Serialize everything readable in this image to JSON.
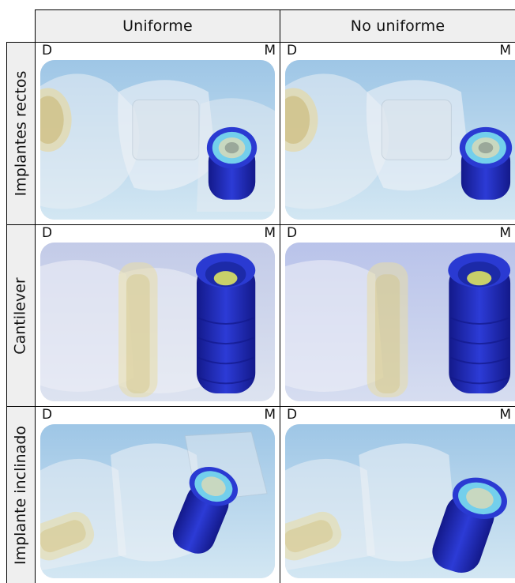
{
  "columns": [
    "Uniforme",
    "No uniforme"
  ],
  "rows": [
    "Implantes rectos",
    "Cantilever",
    "Implante inclinado"
  ],
  "corner_labels": {
    "left": "D",
    "right": "M"
  },
  "colors": {
    "sky_top": "#a9cde9",
    "sky_bottom": "#cfe4f2",
    "cantilever_bg": "#c9d1ea",
    "implant_blue": "#2433c8",
    "implant_dark": "#13198a",
    "ring_cyan": "#5fd3e6",
    "screw_gold": "#d8c98a",
    "tooth_ghost": "#e6ebf1"
  }
}
